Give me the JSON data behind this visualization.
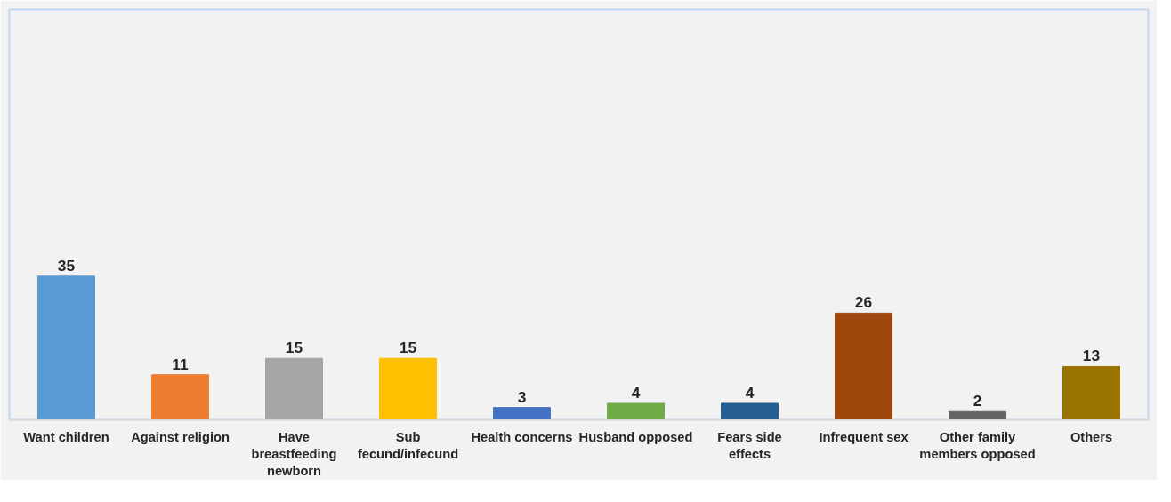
{
  "chart_data": {
    "type": "bar",
    "categories": [
      "Want children",
      "Against religion",
      "Have breastfeeding newborn",
      "Sub fecund/infecund",
      "Health concerns",
      "Husband opposed",
      "Fears side effects",
      "Infrequent sex",
      "Other family members opposed",
      "Others"
    ],
    "values": [
      35,
      11,
      15,
      15,
      3,
      4,
      4,
      26,
      2,
      13
    ],
    "colors": [
      "#5b9bd5",
      "#ed7d31",
      "#a5a5a5",
      "#ffc000",
      "#4472c4",
      "#70ad47",
      "#255e91",
      "#9e480e",
      "#636363",
      "#997300"
    ],
    "ylim": [
      0,
      100
    ],
    "tick_labels": "x",
    "grid": false,
    "data_labels": true
  }
}
